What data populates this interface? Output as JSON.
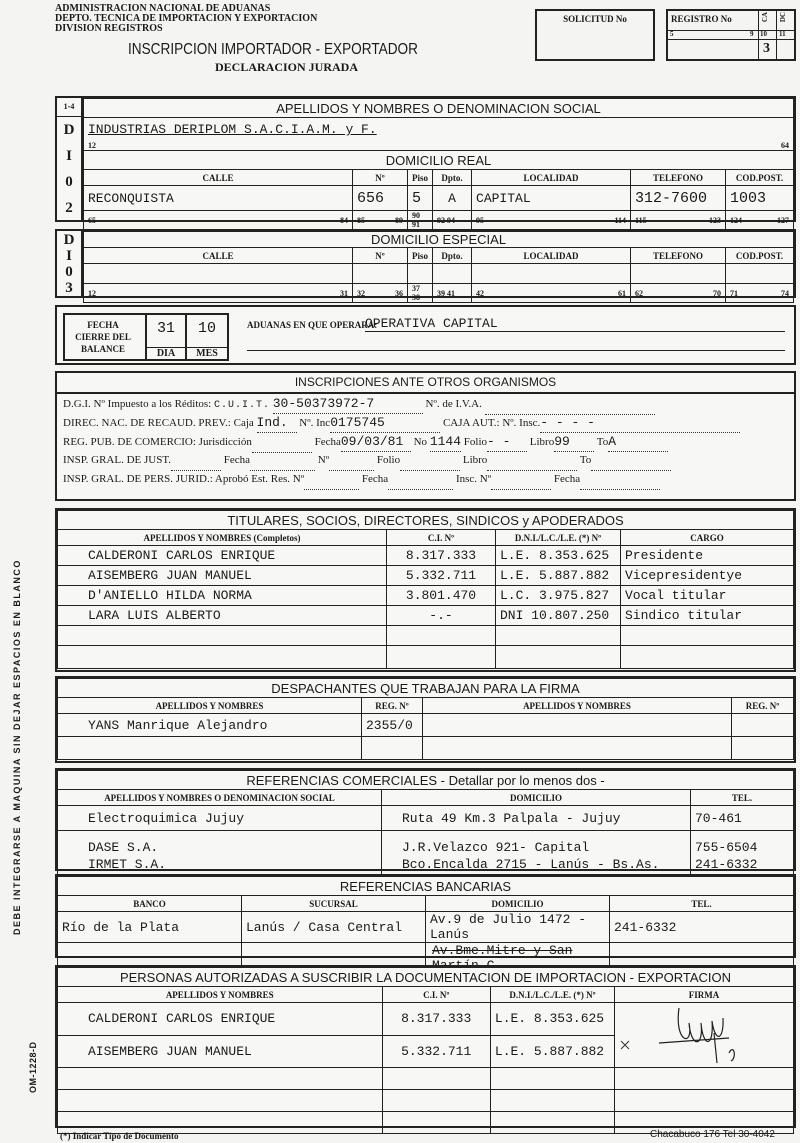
{
  "header": {
    "org_line1": "ADMINISTRACION NACIONAL DE ADUANAS",
    "org_line2": "DEPTO. TECNICA DE IMPORTACION Y EXPORTACION",
    "org_line3": "DIVISION REGISTROS",
    "title": "INSCRIPCION IMPORTADOR - EXPORTADOR",
    "subtitle": "DECLARACION JURADA",
    "solicitud_label": "SOLICITUD No",
    "solicitud_value": "",
    "registro_label": "REGISTRO No",
    "registro_ca": "CA",
    "registro_dc": "DC",
    "registro_pos": [
      "5",
      "9",
      "10",
      "11"
    ],
    "registro_ca_value": "3"
  },
  "section_di02": {
    "code": "1-4",
    "letters": [
      "D",
      "I",
      "0",
      "2"
    ],
    "title": "APELLIDOS Y NOMBRES O DENOMINACION SOCIAL",
    "name_value": "INDUSTRIAS DERIPLOM S.A.C.I.A.M. y F.",
    "name_pos": [
      "12",
      "64"
    ],
    "domicilio_title": "DOMICILIO REAL",
    "columns": [
      "CALLE",
      "Nº",
      "Piso",
      "Dpto.",
      "LOCALIDAD",
      "TELEFONO",
      "COD.POST."
    ],
    "values": [
      "RECONQUISTA",
      "656",
      "5",
      "A",
      "CAPITAL",
      "312-7600",
      "1003"
    ],
    "positions": [
      [
        "65",
        "84"
      ],
      [
        "85",
        "89"
      ],
      [
        "90",
        "91"
      ],
      [
        "92",
        "94"
      ],
      [
        "95",
        "114"
      ],
      [
        "115",
        "123"
      ],
      [
        "124",
        "127"
      ]
    ]
  },
  "section_di03": {
    "letters": [
      "D",
      "I",
      "0",
      "3"
    ],
    "title": "DOMICILIO ESPECIAL",
    "columns": [
      "CALLE",
      "Nº",
      "Piso",
      "Dpto.",
      "LOCALIDAD",
      "TELEFONO",
      "COD.POST."
    ],
    "positions": [
      [
        "12",
        "31"
      ],
      [
        "32",
        "36"
      ],
      [
        "37",
        "38"
      ],
      [
        "39",
        "41"
      ],
      [
        "42",
        "61"
      ],
      [
        "62",
        "70"
      ],
      [
        "71",
        "74"
      ]
    ]
  },
  "balance": {
    "label_line1": "FECHA",
    "label_line2": "CIERRE DEL",
    "label_line3": "BALANCE",
    "day": "31",
    "month": "10",
    "day_label": "DIA",
    "month_label": "MES",
    "aduanas_label": "ADUANAS EN QUE OPERARA:",
    "aduanas_value": "OPERATIVA CAPITAL"
  },
  "inscripciones": {
    "title": "INSCRIPCIONES ANTE OTROS ORGANISMOS",
    "dgi_label": "D.G.I. Nº Impuesto a los Réditos:",
    "dgi_overlay": "C.U.I.T.",
    "dgi_value": "30-50373972-7",
    "iva_label": "Nº. de I.V.A.",
    "recaud_label": "DIREC. NAC. DE RECAUD. PREV.: Caja",
    "caja_value": "Ind.",
    "inc_label": "Nº. Inc",
    "inc_value": "0175745",
    "caja_aut_label": "CAJA AUT.: Nº. Insc.",
    "caja_aut_value": "-  -  -  -",
    "reg_label": "REG. PUB. DE COMERCIO: Jurisdicción",
    "fecha_label": "Fecha",
    "reg_fecha": "09/03/81",
    "no_label": "No",
    "reg_no": "1144",
    "folio_label": "Folio",
    "reg_folio": "- -",
    "libro_label": "Libro",
    "reg_libro": "99",
    "to_label": "To",
    "reg_to": "A",
    "igj_label": "INSP. GRAL. DE JUST.",
    "igj_no_label": "Nº",
    "igpj_label": "INSP. GRAL. DE PERS. JURID.: Aprobó Est. Res. Nº",
    "insc_label": "Insc. Nº"
  },
  "titulares": {
    "title": "TITULARES, SOCIOS, DIRECTORES, SINDICOS y APODERADOS",
    "columns": [
      "APELLIDOS Y NOMBRES (Completos)",
      "C.I. Nº",
      "D.N.I./L.C./L.E. (*) Nº",
      "CARGO"
    ],
    "rows": [
      [
        "CALDERONI CARLOS ENRIQUE",
        "8.317.333",
        "L.E. 8.353.625",
        "Presidente"
      ],
      [
        "AISEMBERG JUAN MANUEL",
        "5.332.711",
        "L.E. 5.887.882",
        "Vicepresidentye"
      ],
      [
        "D'ANIELLO HILDA NORMA",
        "3.801.470",
        "L.C. 3.975.827",
        "Vocal titular"
      ],
      [
        "LARA LUIS ALBERTO",
        "-.-",
        "DNI 10.807.250",
        "Sindico titular"
      ]
    ]
  },
  "despachantes": {
    "title": "DESPACHANTES QUE TRABAJAN PARA LA FIRMA",
    "columns": [
      "APELLIDOS Y NOMBRES",
      "REG. Nº",
      "APELLIDOS Y NOMBRES",
      "REG. Nº"
    ],
    "rows": [
      [
        "YANS Manrique Alejandro",
        "2355/0",
        "",
        ""
      ]
    ]
  },
  "ref_comerciales": {
    "title": "REFERENCIAS COMERCIALES - Detallar por lo menos dos -",
    "columns": [
      "APELLIDOS Y NOMBRES O DENOMINACION SOCIAL",
      "DOMICILIO",
      "TEL."
    ],
    "rows": [
      [
        "Electroquimica Jujuy",
        "Ruta 49 Km.3 Palpala - Jujuy",
        "70-461"
      ],
      [
        "DASE S.A.",
        "J.R.Velazco 921- Capital",
        "755-6504"
      ],
      [
        "IRMET S.A.",
        "Bco.Encalda 2715 - Lanús - Bs.As.",
        "241-6332"
      ]
    ]
  },
  "ref_bancarias": {
    "title": "REFERENCIAS BANCARIAS",
    "columns": [
      "BANCO",
      "SUCURSAL",
      "DOMICILIO",
      "TEL."
    ],
    "rows": [
      [
        "Río de la Plata",
        "Lanús / Casa Central",
        "Av.9 de Julio 1472 - Lanús",
        "241-6332"
      ]
    ],
    "extra_line": "Av.Bme.Mitre y San Martín C."
  },
  "autorizadas": {
    "title": "PERSONAS AUTORIZADAS A SUSCRIBIR LA DOCUMENTACION DE IMPORTACION - EXPORTACION",
    "columns": [
      "APELLIDOS Y NOMBRES",
      "C.I. Nº",
      "D.N.I./L.C./L.E. (*) Nº",
      "FIRMA"
    ],
    "rows": [
      [
        "CALDERONI CARLOS ENRIQUE",
        "8.317.333",
        "L.E. 8.353.625"
      ],
      [
        "AISEMBERG JUAN MANUEL",
        "5.332.711",
        "L.E. 5.887.882"
      ]
    ]
  },
  "side_text": "DEBE INTEGRARSE A MAQUINA SIN DEJAR ESPACIOS EN BLANCO",
  "form_code": "OM-1228-D",
  "footer": {
    "note": "(*) Indicar Tipo de Documento",
    "printer": "Chacabuco 176  Tel 30-4042"
  }
}
